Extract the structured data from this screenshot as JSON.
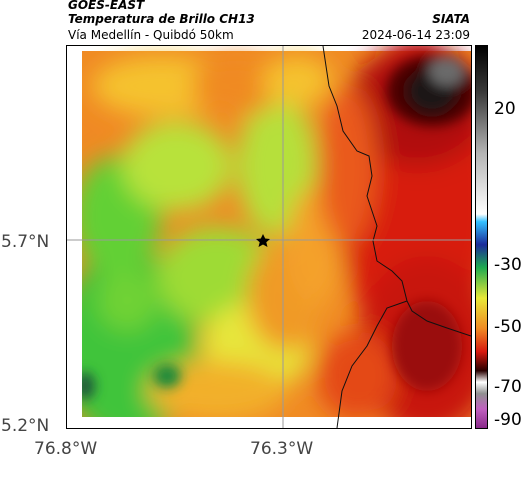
{
  "header": {
    "satellite": "GOES-EAST",
    "product": "Temperatura de Brillo CH13",
    "region": "Vía Medellín - Quibdó 50km",
    "organization": "SIATA",
    "timestamp": "2024-06-14 23:09"
  },
  "axes": {
    "lat_ticks": [
      "5.7°N",
      "5.2°N"
    ],
    "lon_ticks": [
      "76.8°W",
      "76.3°W"
    ]
  },
  "colorbar": {
    "ticks": [
      "20",
      "-30",
      "-50",
      "-70",
      "-90"
    ]
  },
  "colors": {
    "green": "#3fc43a",
    "yellow": "#f2e838",
    "orange": "#f08a24",
    "red": "#d81a10",
    "darkred": "#7a0a08"
  }
}
